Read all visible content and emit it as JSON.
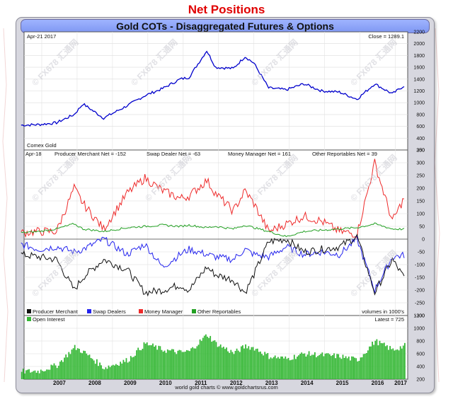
{
  "page_title": "Net Positions",
  "chart_title": "Gold COTs - Disaggregated Futures & Options",
  "price_panel": {
    "date_label": "Apr-21  2017",
    "close_label": "Close = 1289.1",
    "corner_label": "Comex Gold"
  },
  "cot_panel": {
    "date_label": "Apr-18",
    "stat_labels": [
      "Producer Merchant Net = -152",
      "Swap Dealer Net = -63",
      "Money Manager Net = 161",
      "Other Reportables Net = 39"
    ],
    "volume_note": "volumes in 1000's"
  },
  "oi_panel": {
    "label": "Open Interest",
    "latest_label": "Latest = 725"
  },
  "footer": "world gold charts © www.goldchartsrus.com",
  "watermark": "© FX678 汇通网",
  "colors": {
    "price": "#0000cc",
    "producer": "#111111",
    "swap": "#2323ee",
    "money": "#ee2a2a",
    "other": "#22a022",
    "oi": "#33b733"
  },
  "chart_data": [
    {
      "type": "line",
      "title": "Comex Gold",
      "x": [
        "2006-06",
        "2006-12",
        "2007-06",
        "2007-12",
        "2008-03",
        "2008-10",
        "2009-06",
        "2009-12",
        "2010-06",
        "2010-12",
        "2011-03",
        "2011-09",
        "2011-12",
        "2012-06",
        "2012-10",
        "2013-01",
        "2013-06",
        "2013-12",
        "2014-06",
        "2014-12",
        "2015-06",
        "2015-12",
        "2016-06",
        "2016-12",
        "2017-04"
      ],
      "series": [
        {
          "name": "Comex Gold",
          "values": [
            620,
            630,
            660,
            800,
            980,
            740,
            950,
            1120,
            1240,
            1400,
            1430,
            1880,
            1600,
            1580,
            1780,
            1670,
            1250,
            1220,
            1320,
            1200,
            1180,
            1060,
            1320,
            1150,
            1289
          ]
        }
      ],
      "ylim": [
        200,
        2200
      ],
      "y_ticks": [
        200,
        400,
        600,
        800,
        1000,
        1200,
        1400,
        1600,
        1800,
        2000,
        2200
      ],
      "x_ticks": [
        "2007",
        "2008",
        "2009",
        "2010",
        "2011",
        "2012",
        "2013",
        "2014",
        "2015",
        "2016",
        "2017"
      ]
    },
    {
      "type": "line",
      "title": "Gold COTs Net Positions",
      "x": [
        "2006-06",
        "2006-12",
        "2007-06",
        "2007-12",
        "2008-03",
        "2008-10",
        "2009-06",
        "2009-12",
        "2010-06",
        "2010-12",
        "2011-03",
        "2011-09",
        "2011-12",
        "2012-06",
        "2012-10",
        "2013-01",
        "2013-06",
        "2013-12",
        "2014-06",
        "2014-12",
        "2015-06",
        "2015-12",
        "2016-06",
        "2016-12",
        "2017-04"
      ],
      "series": [
        {
          "name": "Producer Merchant",
          "values": [
            -60,
            -70,
            -80,
            -200,
            -150,
            -80,
            -120,
            -210,
            -200,
            -180,
            -200,
            -110,
            -140,
            -160,
            -210,
            -140,
            -10,
            0,
            -50,
            -40,
            -30,
            10,
            -210,
            -80,
            -152
          ]
        },
        {
          "name": "Swap Dealers",
          "values": [
            -20,
            -40,
            -30,
            -50,
            -40,
            0,
            -60,
            -20,
            -110,
            -60,
            -40,
            -60,
            -70,
            -80,
            -40,
            -60,
            -70,
            -30,
            -60,
            -50,
            -60,
            0,
            -200,
            -70,
            -63
          ]
        },
        {
          "name": "Money Manager",
          "values": [
            25,
            30,
            30,
            200,
            140,
            40,
            180,
            240,
            190,
            160,
            170,
            230,
            180,
            110,
            190,
            140,
            30,
            60,
            90,
            70,
            30,
            20,
            300,
            70,
            161
          ]
        },
        {
          "name": "Other Reportables",
          "values": [
            25,
            30,
            40,
            60,
            40,
            30,
            45,
            50,
            55,
            50,
            55,
            45,
            50,
            40,
            55,
            45,
            30,
            10,
            30,
            35,
            40,
            45,
            60,
            40,
            39
          ]
        }
      ],
      "ylim": [
        -300,
        350
      ],
      "y_ticks": [
        -300,
        -250,
        -200,
        -150,
        -100,
        -50,
        0,
        50,
        100,
        150,
        200,
        250,
        300,
        350
      ],
      "ylabel": "volumes in 1000's"
    },
    {
      "type": "bar",
      "title": "Open Interest",
      "x": [
        "2006-06",
        "2006-12",
        "2007-06",
        "2007-12",
        "2008-03",
        "2008-10",
        "2009-06",
        "2009-12",
        "2010-06",
        "2010-12",
        "2011-03",
        "2011-09",
        "2011-12",
        "2012-06",
        "2012-10",
        "2013-01",
        "2013-06",
        "2013-12",
        "2014-06",
        "2014-12",
        "2015-06",
        "2015-12",
        "2016-06",
        "2016-12",
        "2017-04"
      ],
      "series": [
        {
          "name": "Open Interest",
          "values": [
            320,
            330,
            420,
            700,
            630,
            380,
            500,
            760,
            660,
            620,
            640,
            900,
            760,
            610,
            720,
            690,
            560,
            520,
            600,
            580,
            560,
            500,
            800,
            660,
            725
          ]
        }
      ],
      "ylim": [
        200,
        1200
      ],
      "y_ticks": [
        200,
        400,
        600,
        800,
        1000,
        1200
      ]
    }
  ]
}
